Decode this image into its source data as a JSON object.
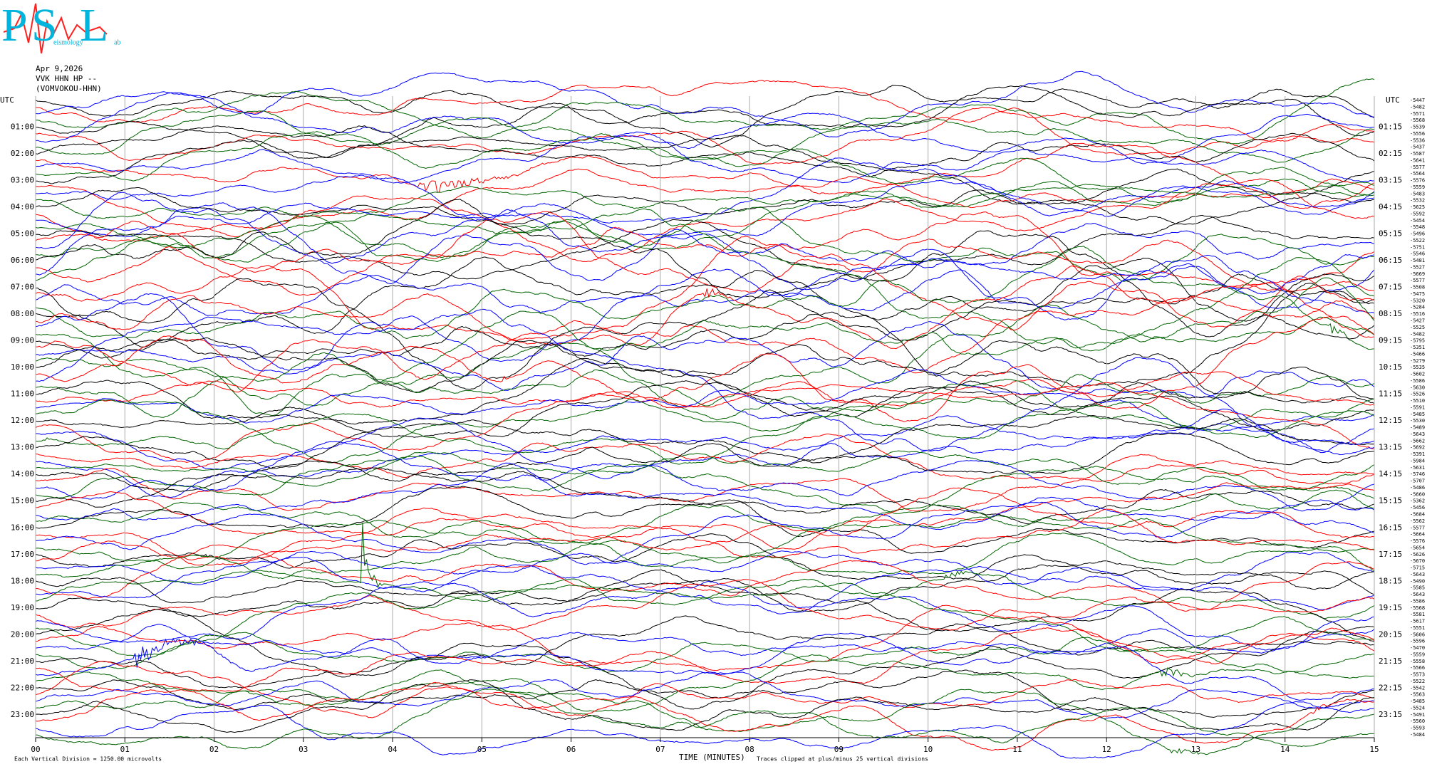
{
  "chart_data": {
    "type": "helicorder",
    "logo": {
      "letters": [
        "P",
        "S",
        "L"
      ],
      "caption": "eismology",
      "caption2": "ab"
    },
    "header": [
      "Apr 9,2026",
      "VVK HHN HP --",
      "(VOMVOKOU-HHN)"
    ],
    "left_title": "UTC",
    "right_title": "UTC",
    "left_labels": [
      "01:00",
      "02:00",
      "03:00",
      "04:00",
      "05:00",
      "06:00",
      "07:00",
      "08:00",
      "09:00",
      "10:00",
      "11:00",
      "12:00",
      "13:00",
      "14:00",
      "15:00",
      "16:00",
      "17:00",
      "18:00",
      "19:00",
      "20:00",
      "21:00",
      "22:00",
      "23:00"
    ],
    "right_labels": [
      "01:15",
      "02:15",
      "03:15",
      "04:15",
      "05:15",
      "06:15",
      "07:15",
      "08:15",
      "09:15",
      "10:15",
      "11:15",
      "12:15",
      "13:15",
      "14:15",
      "15:15",
      "16:15",
      "17:15",
      "18:15",
      "19:15",
      "20:15",
      "21:15",
      "22:15",
      "23:15"
    ],
    "trace_values": [
      -5447,
      -5482,
      -5571,
      -5568,
      -5539,
      -5556,
      -5536,
      -5437,
      -5587,
      -5641,
      -5577,
      -5564,
      -5576,
      -5559,
      -5483,
      -5532,
      -5625,
      -5592,
      -5454,
      -5548,
      -5496,
      -5522,
      -5751,
      -5546,
      -5481,
      -5527,
      -5669,
      -5577,
      -5508,
      -5475,
      -5320,
      -5284,
      -5516,
      -5427,
      -5525,
      -5482,
      -5795,
      -5351,
      -5466,
      -5279,
      -5535,
      -5602,
      -5586,
      -5630,
      -5526,
      -5510,
      -5591,
      -5485,
      -5530,
      -5489,
      -5643,
      -5662,
      -5692,
      -5391,
      -5984,
      -5631,
      -5746,
      -5707,
      -5486,
      -5660,
      -5362,
      -5456,
      -5684,
      -5562,
      -5577,
      -5664,
      -5576,
      -5654,
      -5626,
      -5670,
      -5715,
      -5643,
      -5490,
      -5585,
      -5643,
      -5586,
      -5568,
      -5581,
      -5617,
      -5551,
      -5606,
      -5596,
      -5470,
      -5559,
      -5558,
      -5566,
      -5573,
      -5522,
      -5542,
      -5563,
      -5485,
      -5524,
      -5491,
      -5560,
      -5593,
      -5484
    ],
    "trace_colors": [
      "#000000",
      "#ff0000",
      "#0000ff",
      "#006400"
    ],
    "xlim": [
      0,
      15
    ],
    "xticks": [
      {
        "value": 0,
        "label": "00"
      },
      {
        "value": 1,
        "label": "01"
      },
      {
        "value": 2,
        "label": "02"
      },
      {
        "value": 3,
        "label": "03"
      },
      {
        "value": 4,
        "label": "04"
      },
      {
        "value": 5,
        "label": "05"
      },
      {
        "value": 6,
        "label": "06"
      },
      {
        "value": 7,
        "label": "07"
      },
      {
        "value": 8,
        "label": "08"
      },
      {
        "value": 9,
        "label": "09"
      },
      {
        "value": 10,
        "label": "10"
      },
      {
        "value": 11,
        "label": "11"
      },
      {
        "value": 12,
        "label": "12"
      },
      {
        "value": 13,
        "label": "13"
      },
      {
        "value": 14,
        "label": "14"
      },
      {
        "value": 15,
        "label": "15"
      }
    ],
    "xlabel": "TIME (MINUTES)",
    "scale_note": "Each Vertical Division = 1250.00 microvolts",
    "clip_note": "Traces clipped at plus/minus 25 vertical divisions",
    "grid": true
  }
}
